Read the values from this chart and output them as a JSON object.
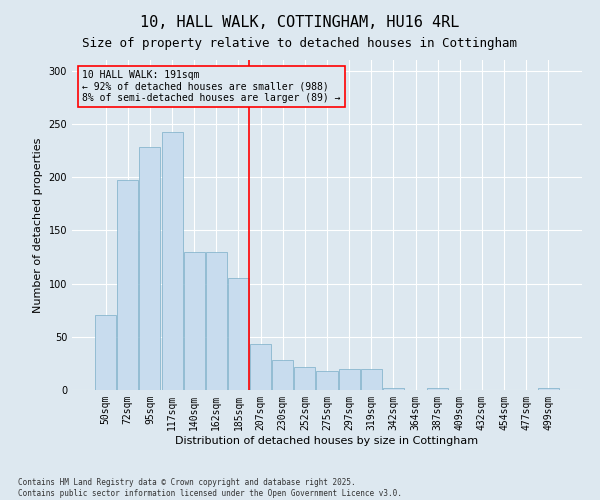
{
  "title": "10, HALL WALK, COTTINGHAM, HU16 4RL",
  "subtitle": "Size of property relative to detached houses in Cottingham",
  "xlabel": "Distribution of detached houses by size in Cottingham",
  "ylabel": "Number of detached properties",
  "categories": [
    "50sqm",
    "72sqm",
    "95sqm",
    "117sqm",
    "140sqm",
    "162sqm",
    "185sqm",
    "207sqm",
    "230sqm",
    "252sqm",
    "275sqm",
    "297sqm",
    "319sqm",
    "342sqm",
    "364sqm",
    "387sqm",
    "409sqm",
    "432sqm",
    "454sqm",
    "477sqm",
    "499sqm"
  ],
  "values": [
    70,
    197,
    228,
    242,
    130,
    130,
    105,
    43,
    28,
    22,
    18,
    20,
    20,
    2,
    0,
    2,
    0,
    0,
    0,
    0,
    2
  ],
  "bar_color": "#c8dcee",
  "bar_edge_color": "#7aaec8",
  "vline_x_index": 6,
  "vline_color": "red",
  "ylim": [
    0,
    310
  ],
  "yticks": [
    0,
    50,
    100,
    150,
    200,
    250,
    300
  ],
  "annotation_title": "10 HALL WALK: 191sqm",
  "annotation_line1": "← 92% of detached houses are smaller (988)",
  "annotation_line2": "8% of semi-detached houses are larger (89) →",
  "annotation_box_color": "red",
  "footer_line1": "Contains HM Land Registry data © Crown copyright and database right 2025.",
  "footer_line2": "Contains public sector information licensed under the Open Government Licence v3.0.",
  "background_color": "#dde8f0",
  "plot_bg_color": "#dde8f0",
  "title_fontsize": 11,
  "subtitle_fontsize": 9,
  "tick_fontsize": 7,
  "ylabel_fontsize": 8,
  "xlabel_fontsize": 8,
  "annotation_fontsize": 7,
  "footer_fontsize": 5.5
}
